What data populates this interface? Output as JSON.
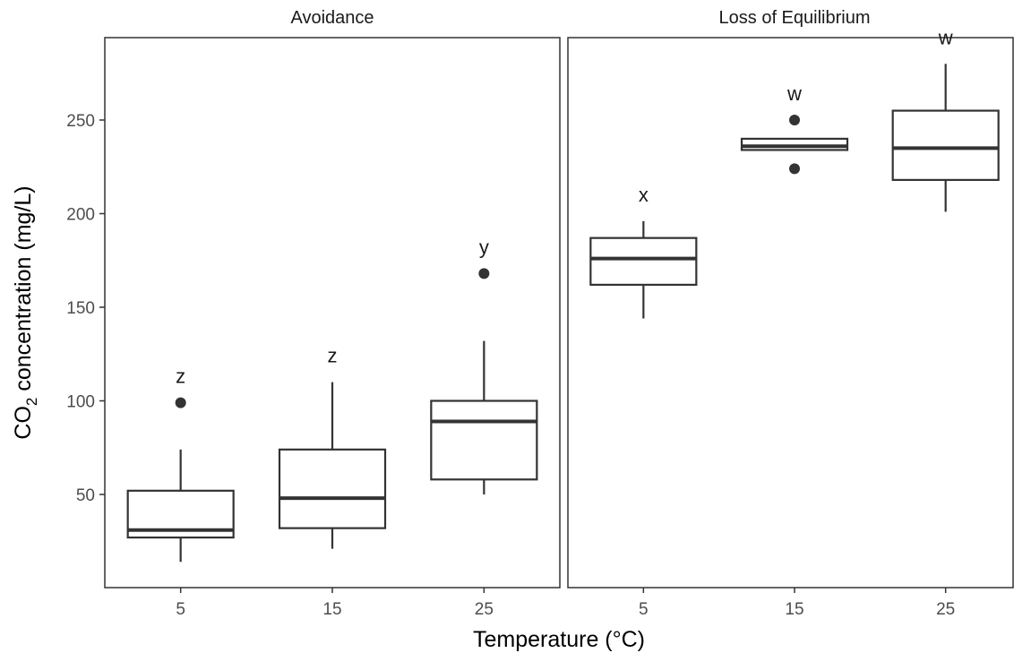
{
  "chart_data": {
    "type": "boxplot",
    "xlabel": "Temperature (°C)",
    "ylabel": {
      "prefix": "CO",
      "subscript": "2",
      "suffix": " concentration (mg/L)"
    },
    "ylim": [
      0,
      290
    ],
    "yticks": [
      50,
      100,
      150,
      200,
      250
    ],
    "categories": [
      "5",
      "15",
      "25"
    ],
    "grid": false,
    "facets": [
      {
        "title": "Avoidance",
        "boxes": [
          {
            "x": "5",
            "whisker_low": 14,
            "q1": 27,
            "median": 31,
            "q3": 52,
            "whisker_high": 74,
            "outliers": [
              99
            ],
            "letter": "z"
          },
          {
            "x": "15",
            "whisker_low": 21,
            "q1": 32,
            "median": 48,
            "q3": 74,
            "whisker_high": 110,
            "outliers": [],
            "letter": "z"
          },
          {
            "x": "25",
            "whisker_low": 50,
            "q1": 58,
            "median": 89,
            "q3": 100,
            "whisker_high": 132,
            "outliers": [
              168
            ],
            "letter": "y"
          }
        ]
      },
      {
        "title": "Loss of Equilibrium",
        "boxes": [
          {
            "x": "5",
            "whisker_low": 144,
            "q1": 162,
            "median": 176,
            "q3": 187,
            "whisker_high": 196,
            "outliers": [],
            "letter": "x"
          },
          {
            "x": "15",
            "whisker_low": 234,
            "q1": 234,
            "median": 236,
            "q3": 240,
            "whisker_high": 240,
            "outliers": [
              250,
              224
            ],
            "letter": "w"
          },
          {
            "x": "25",
            "whisker_low": 201,
            "q1": 218,
            "median": 235,
            "q3": 255,
            "whisker_high": 280,
            "outliers": [],
            "letter": "w"
          }
        ]
      }
    ]
  }
}
